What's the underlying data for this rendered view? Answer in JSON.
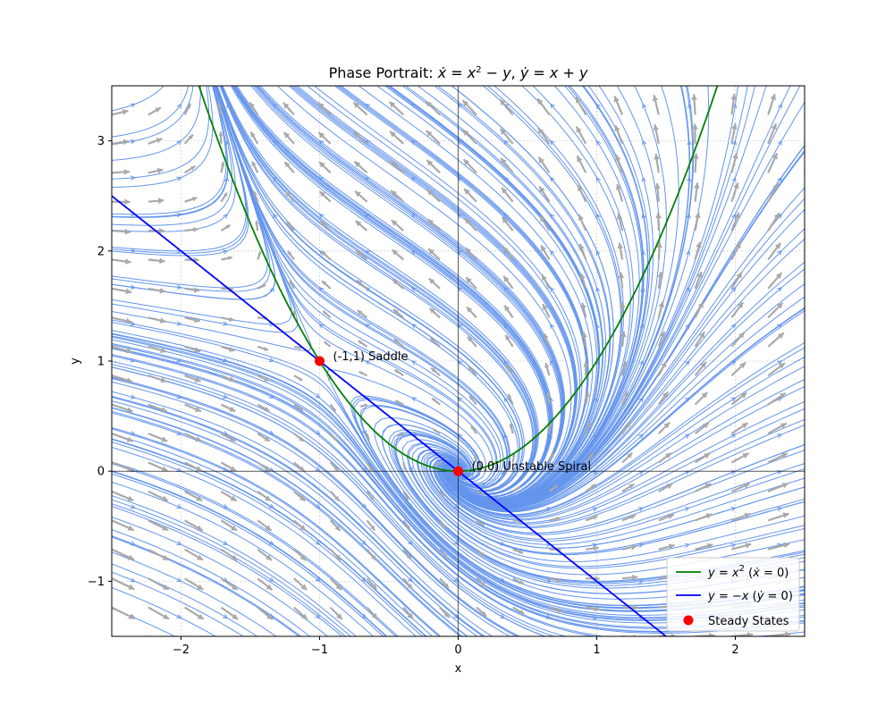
{
  "chart_data": {
    "type": "line",
    "title": "Phase Portrait: ẋ = x² − y, ẏ = x + y",
    "title_parts": [
      "Phase Portrait: ",
      "ẋ",
      " = ",
      "x",
      "2",
      " − ",
      "y",
      ", ",
      "ẏ",
      " = ",
      "x",
      " + ",
      "y"
    ],
    "xlabel": "x",
    "ylabel": "y",
    "xlim": [
      -2.5,
      2.5
    ],
    "ylim": [
      -1.5,
      3.5
    ],
    "xticks": [
      -2,
      -1,
      0,
      1,
      2
    ],
    "yticks": [
      -1,
      0,
      1,
      2,
      3
    ],
    "xtick_labels": [
      "−2",
      "−1",
      "0",
      "1",
      "2"
    ],
    "ytick_labels": [
      "−1",
      "0",
      "1",
      "2",
      "3"
    ],
    "grid": true,
    "legend_position": "lower-right",
    "series": [
      {
        "name": "y = x² (ẋ = 0)",
        "label_parts": [
          "y",
          " = ",
          "x",
          "2",
          " (",
          "ẋ",
          " = 0)"
        ],
        "kind": "nullcline",
        "equation": "y = x^2",
        "color": "#008000"
      },
      {
        "name": "y = −x (ẏ = 0)",
        "label_parts": [
          "y",
          " = −",
          "x",
          " (",
          "ẏ",
          " = 0)"
        ],
        "kind": "nullcline",
        "equation": "y = -x",
        "color": "#0000ff"
      },
      {
        "name": "Steady States",
        "kind": "points",
        "color": "#ff0000",
        "points": [
          {
            "x": -1,
            "y": 1
          },
          {
            "x": 0,
            "y": 0
          }
        ]
      }
    ],
    "annotations": [
      {
        "text": "(-1,1) Saddle",
        "x": -1,
        "y": 1
      },
      {
        "text": "(0,0) Unstable Spiral",
        "x": 0,
        "y": 0
      }
    ],
    "vector_field": {
      "dx": "x^2 - y",
      "dy": "x + y",
      "arrow_color": "#a9a9a9",
      "stream_color": "#6495ed"
    }
  }
}
